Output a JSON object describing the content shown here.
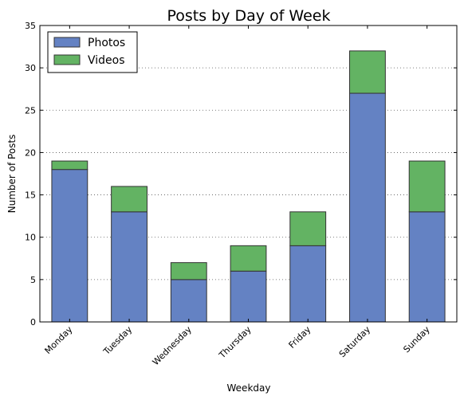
{
  "chart_data": {
    "type": "bar",
    "stacked": true,
    "title": "Posts by Day of Week",
    "xlabel": "Weekday",
    "ylabel": "Number of Posts",
    "ylim": [
      0,
      35
    ],
    "yticks": [
      0,
      5,
      10,
      15,
      20,
      25,
      30,
      35
    ],
    "grid": "horizontal dotted",
    "legend_position": "top-left",
    "categories": [
      "Monday",
      "Tuesday",
      "Wednesday",
      "Thursday",
      "Friday",
      "Saturday",
      "Sunday"
    ],
    "series": [
      {
        "name": "Photos",
        "color": "#6482c3",
        "values": [
          18,
          13,
          5,
          6,
          9,
          27,
          13
        ]
      },
      {
        "name": "Videos",
        "color": "#63b363",
        "values": [
          1,
          3,
          2,
          3,
          4,
          5,
          6
        ]
      }
    ]
  }
}
